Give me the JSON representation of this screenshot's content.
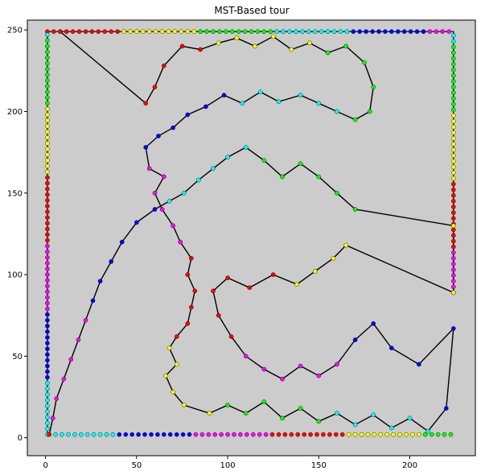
{
  "chart_data": {
    "type": "scatter",
    "title": "MST-Based tour",
    "xlabel": "",
    "ylabel": "",
    "xlim": [
      -10,
      236
    ],
    "ylim": [
      -11,
      256
    ],
    "xticks": [
      0,
      50,
      100,
      150,
      200
    ],
    "yticks": [
      0,
      50,
      100,
      150,
      200,
      250
    ],
    "grid": false,
    "background": "#cccccc",
    "tour_color": "#000000",
    "point_palette": [
      "#ff0000",
      "#ffff00",
      "#00ff00",
      "#00ffff",
      "#0000ff",
      "#ff00ff"
    ],
    "border_points": {
      "top": {
        "x_from": 1,
        "x_to": 224,
        "y": 249
      },
      "left": {
        "x": 1,
        "y_from": 2,
        "y_to": 249
      },
      "right": {
        "x": 224,
        "y_from": 89,
        "y_to": 249
      },
      "bottom": {
        "x_from": 2,
        "x_to": 224,
        "y": 2
      }
    },
    "series": [
      {
        "values": [
          {
            "x": 8,
            "y": 249
          },
          {
            "x": 55,
            "y": 205
          },
          {
            "x": 60,
            "y": 215
          },
          {
            "x": 65,
            "y": 228
          },
          {
            "x": 75,
            "y": 240
          },
          {
            "x": 85,
            "y": 238
          },
          {
            "x": 95,
            "y": 242
          },
          {
            "x": 105,
            "y": 245
          },
          {
            "x": 115,
            "y": 240
          },
          {
            "x": 125,
            "y": 246
          },
          {
            "x": 135,
            "y": 238
          },
          {
            "x": 145,
            "y": 242
          },
          {
            "x": 155,
            "y": 236
          },
          {
            "x": 165,
            "y": 240
          },
          {
            "x": 175,
            "y": 230
          },
          {
            "x": 180,
            "y": 215
          },
          {
            "x": 178,
            "y": 200
          },
          {
            "x": 170,
            "y": 195
          },
          {
            "x": 160,
            "y": 200
          },
          {
            "x": 150,
            "y": 205
          },
          {
            "x": 140,
            "y": 210
          },
          {
            "x": 128,
            "y": 206
          },
          {
            "x": 118,
            "y": 212
          },
          {
            "x": 108,
            "y": 205
          },
          {
            "x": 98,
            "y": 210
          },
          {
            "x": 88,
            "y": 203
          },
          {
            "x": 78,
            "y": 198
          },
          {
            "x": 70,
            "y": 190
          },
          {
            "x": 62,
            "y": 185
          },
          {
            "x": 55,
            "y": 178
          },
          {
            "x": 57,
            "y": 165
          },
          {
            "x": 65,
            "y": 160
          },
          {
            "x": 60,
            "y": 150
          },
          {
            "x": 64,
            "y": 140
          },
          {
            "x": 70,
            "y": 130
          },
          {
            "x": 74,
            "y": 120
          },
          {
            "x": 80,
            "y": 110
          },
          {
            "x": 78,
            "y": 100
          },
          {
            "x": 82,
            "y": 90
          },
          {
            "x": 80,
            "y": 80
          },
          {
            "x": 78,
            "y": 70
          },
          {
            "x": 72,
            "y": 62
          },
          {
            "x": 68,
            "y": 55
          },
          {
            "x": 72,
            "y": 45
          },
          {
            "x": 66,
            "y": 38
          },
          {
            "x": 70,
            "y": 28
          },
          {
            "x": 76,
            "y": 20
          },
          {
            "x": 90,
            "y": 15
          },
          {
            "x": 100,
            "y": 20
          },
          {
            "x": 110,
            "y": 15
          },
          {
            "x": 120,
            "y": 22
          },
          {
            "x": 130,
            "y": 12
          },
          {
            "x": 140,
            "y": 18
          },
          {
            "x": 150,
            "y": 10
          },
          {
            "x": 160,
            "y": 15
          },
          {
            "x": 170,
            "y": 8
          },
          {
            "x": 180,
            "y": 14
          },
          {
            "x": 190,
            "y": 6
          },
          {
            "x": 200,
            "y": 12
          },
          {
            "x": 210,
            "y": 4
          },
          {
            "x": 220,
            "y": 18
          },
          {
            "x": 224,
            "y": 67
          },
          {
            "x": 205,
            "y": 45
          },
          {
            "x": 190,
            "y": 55
          },
          {
            "x": 180,
            "y": 70
          },
          {
            "x": 170,
            "y": 60
          },
          {
            "x": 160,
            "y": 45
          },
          {
            "x": 150,
            "y": 38
          },
          {
            "x": 140,
            "y": 44
          },
          {
            "x": 130,
            "y": 36
          },
          {
            "x": 120,
            "y": 42
          },
          {
            "x": 110,
            "y": 50
          },
          {
            "x": 102,
            "y": 62
          },
          {
            "x": 95,
            "y": 75
          },
          {
            "x": 92,
            "y": 90
          },
          {
            "x": 100,
            "y": 98
          },
          {
            "x": 112,
            "y": 92
          },
          {
            "x": 125,
            "y": 100
          },
          {
            "x": 138,
            "y": 94
          },
          {
            "x": 148,
            "y": 102
          },
          {
            "x": 158,
            "y": 110
          },
          {
            "x": 165,
            "y": 118
          },
          {
            "x": 224,
            "y": 89
          },
          {
            "x": 224,
            "y": 130
          },
          {
            "x": 170,
            "y": 140
          },
          {
            "x": 160,
            "y": 150
          },
          {
            "x": 150,
            "y": 160
          },
          {
            "x": 140,
            "y": 168
          },
          {
            "x": 130,
            "y": 160
          },
          {
            "x": 120,
            "y": 170
          },
          {
            "x": 110,
            "y": 178
          },
          {
            "x": 100,
            "y": 172
          },
          {
            "x": 92,
            "y": 165
          },
          {
            "x": 84,
            "y": 158
          },
          {
            "x": 76,
            "y": 150
          },
          {
            "x": 68,
            "y": 145
          },
          {
            "x": 60,
            "y": 140
          },
          {
            "x": 50,
            "y": 132
          },
          {
            "x": 42,
            "y": 120
          },
          {
            "x": 36,
            "y": 108
          },
          {
            "x": 30,
            "y": 96
          },
          {
            "x": 26,
            "y": 84
          },
          {
            "x": 22,
            "y": 72
          },
          {
            "x": 18,
            "y": 60
          },
          {
            "x": 14,
            "y": 48
          },
          {
            "x": 10,
            "y": 36
          },
          {
            "x": 6,
            "y": 24
          },
          {
            "x": 4,
            "y": 12
          },
          {
            "x": 2,
            "y": 2
          }
        ]
      }
    ]
  }
}
